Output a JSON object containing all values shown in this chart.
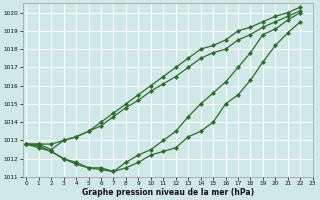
{
  "xlabel": "Graphe pression niveau de la mer (hPa)",
  "background_color": "#d0e8e8",
  "line_color": "#2d6b2d",
  "grid_color": "#ffffff",
  "xlim_min": -0.3,
  "xlim_max": 23,
  "ylim_min": 1011.0,
  "ylim_max": 1020.5,
  "yticks": [
    1011,
    1012,
    1013,
    1014,
    1015,
    1016,
    1017,
    1018,
    1019,
    1020
  ],
  "xticks": [
    0,
    1,
    2,
    3,
    4,
    5,
    6,
    7,
    8,
    9,
    10,
    11,
    12,
    13,
    14,
    15,
    16,
    17,
    18,
    19,
    20,
    21,
    22,
    23
  ],
  "s1": [
    1012.8,
    1012.8,
    1012.8,
    1013.0,
    1013.2,
    1013.5,
    1014.0,
    1014.5,
    1015.0,
    1015.5,
    1016.0,
    1016.5,
    1017.0,
    1017.5,
    1018.0,
    1018.2,
    1018.5,
    1019.0,
    1019.2,
    1019.5,
    1019.8,
    1020.0,
    1020.3
  ],
  "s2": [
    1012.8,
    1012.8,
    1012.5,
    1013.0,
    1013.2,
    1013.5,
    1013.8,
    1014.3,
    1014.8,
    1015.2,
    1015.7,
    1016.1,
    1016.5,
    1017.0,
    1017.5,
    1017.8,
    1018.0,
    1018.5,
    1018.8,
    1019.2,
    1019.5,
    1019.8,
    1020.1
  ],
  "s3_x": [
    0,
    1,
    2,
    3,
    4,
    5,
    6,
    7,
    8,
    9,
    10,
    11,
    12,
    13,
    14,
    15,
    16,
    17,
    18,
    19,
    20,
    21,
    22
  ],
  "s3": [
    1012.8,
    1012.7,
    1012.4,
    1012.0,
    1011.7,
    1011.5,
    1011.4,
    1011.3,
    1011.8,
    1012.2,
    1012.5,
    1013.0,
    1013.5,
    1014.3,
    1015.0,
    1015.6,
    1016.2,
    1017.0,
    1017.8,
    1018.8,
    1019.1,
    1019.6,
    1020.0
  ],
  "s4_x": [
    0,
    1,
    2,
    3,
    4,
    5,
    6,
    7,
    8,
    9,
    10,
    11,
    12,
    13,
    14,
    15,
    16,
    17,
    18,
    19,
    20,
    21,
    22
  ],
  "s4": [
    1012.8,
    1012.6,
    1012.4,
    1012.0,
    1011.8,
    1011.5,
    1011.5,
    1011.3,
    1011.5,
    1011.8,
    1012.2,
    1012.4,
    1012.6,
    1013.2,
    1013.5,
    1014.0,
    1015.0,
    1015.5,
    1016.3,
    1017.3,
    1018.2,
    1018.9,
    1019.5
  ]
}
